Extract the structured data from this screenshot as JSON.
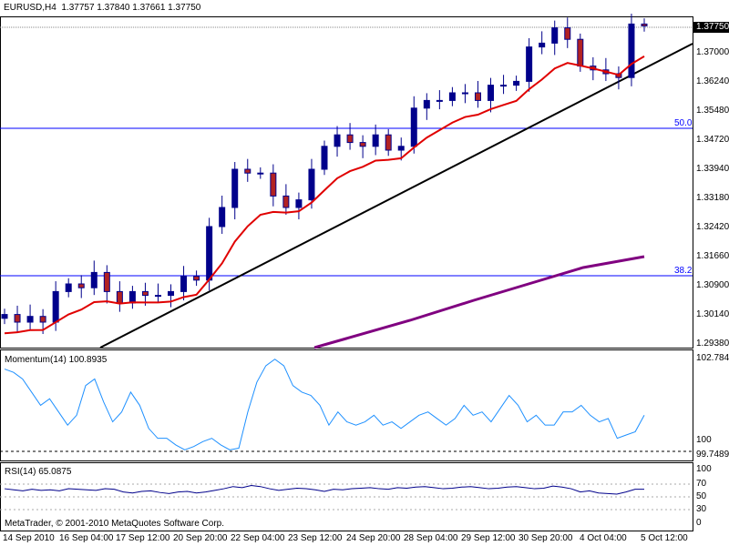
{
  "header": {
    "symbol": "EURUSD,H4",
    "open": "1.37757",
    "high": "1.37840",
    "low": "1.37661",
    "close": "1.37750"
  },
  "price_axis": {
    "current": "1.37750",
    "ticks": [
      "1.37000",
      "1.36240",
      "1.35480",
      "1.34720",
      "1.33940",
      "1.33180",
      "1.32420",
      "1.31660",
      "1.30900",
      "1.30140",
      "1.29380"
    ]
  },
  "fib_levels": {
    "a": "50.0",
    "b": "38.2"
  },
  "momentum": {
    "label": "Momentum(14) 100.8935",
    "max": "102.7847",
    "min": "99.7489",
    "level": "100",
    "values": [
      102.3,
      102.2,
      102.0,
      101.6,
      101.2,
      101.4,
      101.0,
      100.6,
      100.9,
      101.8,
      102.0,
      101.3,
      100.7,
      101.0,
      101.6,
      101.2,
      100.5,
      100.2,
      100.2,
      100.0,
      99.85,
      99.95,
      100.1,
      100.2,
      100.0,
      99.85,
      99.9,
      101.0,
      101.9,
      102.4,
      102.6,
      102.4,
      101.8,
      101.6,
      101.5,
      101.2,
      100.6,
      101.0,
      100.7,
      100.6,
      100.7,
      100.9,
      100.6,
      100.7,
      100.5,
      100.7,
      100.9,
      101.0,
      100.8,
      100.6,
      100.8,
      101.2,
      100.9,
      101.0,
      100.7,
      101.1,
      101.5,
      101.2,
      100.7,
      100.9,
      100.6,
      100.6,
      101.0,
      101.0,
      101.2,
      100.9,
      100.7,
      100.8,
      100.2,
      100.3,
      100.4,
      100.9
    ]
  },
  "rsi": {
    "label": "RSI(14) 65.0875",
    "ticks": [
      "100",
      "70",
      "50",
      "30",
      "0"
    ],
    "values": [
      66,
      64,
      62,
      65,
      63,
      64,
      62,
      66,
      65,
      64,
      63,
      66,
      65,
      60,
      58,
      61,
      62,
      59,
      57,
      60,
      61,
      58,
      60,
      63,
      66,
      70,
      68,
      72,
      70,
      66,
      63,
      65,
      67,
      66,
      64,
      61,
      65,
      64,
      66,
      67,
      68,
      66,
      65,
      68,
      67,
      69,
      70,
      68,
      66,
      67,
      69,
      70,
      68,
      66,
      67,
      69,
      70,
      68,
      66,
      67,
      71,
      69,
      66,
      60,
      62,
      58,
      57,
      56,
      60,
      65,
      65
    ]
  },
  "closes": [
    1.302,
    1.3,
    1.3015,
    1.3,
    1.308,
    1.31,
    1.309,
    1.313,
    1.308,
    1.305,
    1.308,
    1.307,
    1.307,
    1.308,
    1.312,
    1.311,
    1.325,
    1.33,
    1.34,
    1.339,
    1.339,
    1.333,
    1.33,
    1.332,
    1.34,
    1.346,
    1.349,
    1.347,
    1.346,
    1.349,
    1.345,
    1.346,
    1.356,
    1.358,
    1.358,
    1.36,
    1.36,
    1.358,
    1.362,
    1.362,
    1.363,
    1.372,
    1.373,
    1.377,
    1.374,
    1.367,
    1.366,
    1.365,
    1.364,
    1.378,
    1.3775
  ],
  "copyright": "MetaTrader, © 2001-2010 MetaQuotes Software Corp.",
  "time_axis": [
    "14 Sep 2010",
    "16 Sep 04:00",
    "17 Sep 12:00",
    "20 Sep 20:00",
    "22 Sep 04:00",
    "23 Sep 12:00",
    "24 Sep 20:00",
    "28 Sep 04:00",
    "29 Sep 12:00",
    "30 Sep 20:00",
    "4 Oct 04:00",
    "5 Oct 12:00"
  ]
}
